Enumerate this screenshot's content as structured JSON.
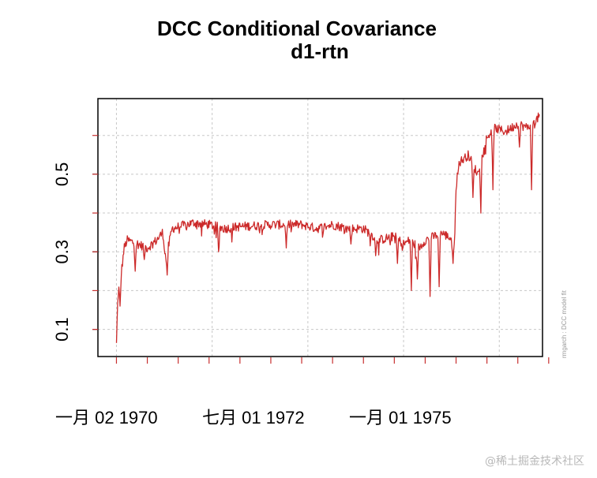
{
  "chart_data": {
    "type": "line",
    "title": "DCC Conditional Covariance",
    "subtitle": "d1-rtn",
    "xlabel": "",
    "ylabel": "",
    "ylim": [
      0.03,
      0.695
    ],
    "xlim": [
      -0.6,
      13.8
    ],
    "yticks": [
      0.1,
      0.3,
      0.5
    ],
    "ytick_labels": [
      "0.1",
      "0.3",
      "0.5"
    ],
    "minor_ytick_values": [
      0.1,
      0.2,
      0.3,
      0.4,
      0.5,
      0.6
    ],
    "minor_xtick_values": [
      0,
      1,
      2,
      3,
      4,
      5,
      6,
      7,
      8,
      9,
      10,
      11,
      12,
      13,
      14
    ],
    "xticks": [
      0,
      5,
      10
    ],
    "xtick_labels": [
      "一月 02 1970",
      "七月 01 1972",
      "一月 01 1975"
    ],
    "vgrid": [
      0,
      3.1,
      6.2,
      9.3,
      12.4
    ],
    "hgrid": [
      0.1,
      0.2,
      0.3,
      0.4,
      0.5,
      0.6
    ],
    "grid": true,
    "series_color": "#cc2a2a",
    "side_note": "rmgarch : DCC model fit",
    "series": [
      {
        "name": "d1-rtn",
        "anchors": [
          [
            0,
            0.065
          ],
          [
            0.05,
            0.19
          ],
          [
            0.15,
            0.24
          ],
          [
            0.25,
            0.31
          ],
          [
            0.35,
            0.33
          ],
          [
            0.7,
            0.32
          ],
          [
            1.0,
            0.31
          ],
          [
            1.3,
            0.33
          ],
          [
            1.5,
            0.35
          ],
          [
            1.6,
            0.28
          ],
          [
            1.8,
            0.36
          ],
          [
            2.5,
            0.375
          ],
          [
            3.0,
            0.37
          ],
          [
            3.5,
            0.36
          ],
          [
            4.0,
            0.365
          ],
          [
            5.0,
            0.37
          ],
          [
            6.0,
            0.37
          ],
          [
            6.5,
            0.36
          ],
          [
            7.0,
            0.37
          ],
          [
            7.5,
            0.36
          ],
          [
            8.0,
            0.36
          ],
          [
            8.5,
            0.33
          ],
          [
            9.0,
            0.34
          ],
          [
            9.3,
            0.32
          ],
          [
            9.5,
            0.33
          ],
          [
            9.8,
            0.31
          ],
          [
            10.0,
            0.33
          ],
          [
            10.3,
            0.34
          ],
          [
            10.5,
            0.35
          ],
          [
            10.95,
            0.33
          ],
          [
            11.0,
            0.47
          ],
          [
            11.1,
            0.53
          ],
          [
            11.4,
            0.55
          ],
          [
            11.7,
            0.5
          ],
          [
            11.9,
            0.58
          ],
          [
            12.2,
            0.62
          ],
          [
            12.6,
            0.61
          ],
          [
            13.0,
            0.63
          ],
          [
            13.3,
            0.62
          ],
          [
            13.5,
            0.63
          ],
          [
            13.7,
            0.65
          ]
        ],
        "dips": [
          [
            0.12,
            0.16
          ],
          [
            0.6,
            0.25
          ],
          [
            0.9,
            0.28
          ],
          [
            1.65,
            0.24
          ],
          [
            3.3,
            0.3
          ],
          [
            5.5,
            0.31
          ],
          [
            7.6,
            0.32
          ],
          [
            8.4,
            0.29
          ],
          [
            9.1,
            0.27
          ],
          [
            9.55,
            0.2
          ],
          [
            9.75,
            0.23
          ],
          [
            10.15,
            0.185
          ],
          [
            10.45,
            0.21
          ],
          [
            10.9,
            0.27
          ],
          [
            11.55,
            0.44
          ],
          [
            11.8,
            0.4
          ],
          [
            12.2,
            0.46
          ],
          [
            13.05,
            0.57
          ],
          [
            13.45,
            0.46
          ]
        ],
        "noise_amplitude": 0.012,
        "n_points": 700
      }
    ]
  },
  "watermark": "@稀土掘金技术社区"
}
